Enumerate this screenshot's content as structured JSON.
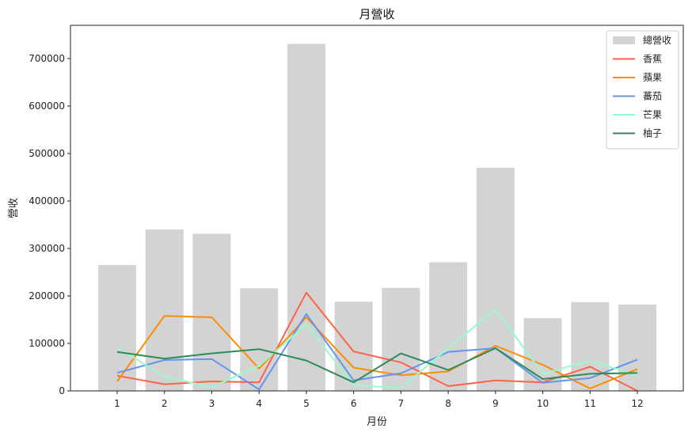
{
  "chart_data": {
    "type": "bar",
    "title": "月營收",
    "xlabel": "月份",
    "ylabel": "營收",
    "categories": [
      "1",
      "2",
      "3",
      "4",
      "5",
      "6",
      "7",
      "8",
      "9",
      "10",
      "11",
      "12"
    ],
    "ylim": [
      0,
      770000
    ],
    "yticks": [
      0,
      100000,
      200000,
      300000,
      400000,
      500000,
      600000,
      700000
    ],
    "legend_position": "top-right",
    "grid": false,
    "bar_series": {
      "name": "總營收",
      "color": "#d3d3d3",
      "values": [
        265000,
        340000,
        331000,
        216000,
        731000,
        188000,
        217000,
        271000,
        470000,
        153000,
        187000,
        182000
      ]
    },
    "series": [
      {
        "name": "香蕉",
        "type": "line",
        "color": "#ff6347",
        "values": [
          32000,
          14000,
          20000,
          18000,
          207000,
          83000,
          60000,
          10000,
          22000,
          18000,
          51000,
          0
        ]
      },
      {
        "name": "蘋果",
        "type": "line",
        "color": "#ff8c00",
        "values": [
          20000,
          158000,
          155000,
          47000,
          155000,
          49000,
          33000,
          41000,
          95000,
          55000,
          5000,
          46000
        ]
      },
      {
        "name": "蕃茄",
        "type": "line",
        "color": "#6495ed",
        "values": [
          38000,
          65000,
          67000,
          3000,
          162000,
          22000,
          37000,
          82000,
          90000,
          17000,
          27000,
          66000
        ]
      },
      {
        "name": "芒果",
        "type": "line",
        "color": "#98fbcb",
        "values": [
          92000,
          30000,
          8000,
          53000,
          140000,
          12000,
          6000,
          90000,
          172000,
          36000,
          64000,
          32000
        ]
      },
      {
        "name": "柚子",
        "type": "line",
        "color": "#2e8b57",
        "values": [
          82000,
          68000,
          79000,
          88000,
          64000,
          18000,
          79000,
          44000,
          90000,
          25000,
          36000,
          38000
        ]
      }
    ]
  }
}
